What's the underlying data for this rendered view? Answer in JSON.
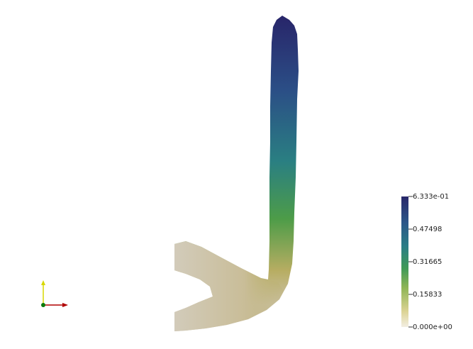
{
  "colorbar": {
    "range": [
      0,
      0.6333
    ],
    "ticks": [
      {
        "value": 0.6333,
        "label": "6.333e-01"
      },
      0.47498,
      0.31665,
      0.15833,
      {
        "value": 0,
        "label": "0.000e+00"
      }
    ]
  }
}
